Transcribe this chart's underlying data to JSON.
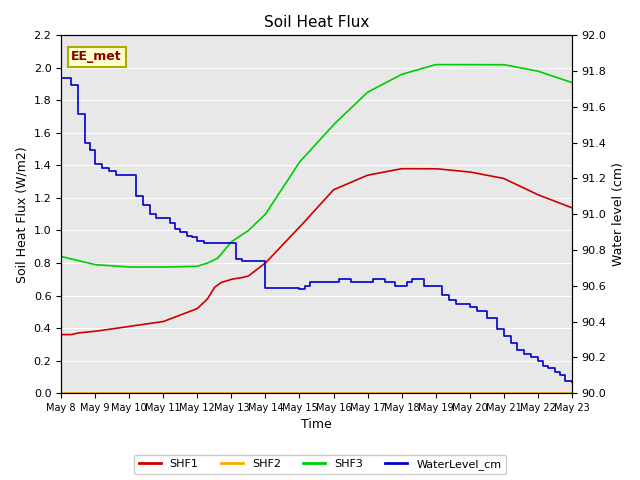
{
  "title": "Soil Heat Flux",
  "ylabel_left": "Soil Heat Flux (W/m2)",
  "ylabel_right": "Water level (cm)",
  "xlabel": "Time",
  "annotation": "EE_met",
  "ylim_left": [
    0.0,
    2.2
  ],
  "ylim_right": [
    90.0,
    92.0
  ],
  "fig_facecolor": "#ffffff",
  "plot_facecolor": "#e8e8e8",
  "shf1_color": "#cc0000",
  "shf2_color": "#ffaa00",
  "shf3_color": "#00cc00",
  "water_color": "#0000cc",
  "x_ticks": [
    "May 8",
    "May 9",
    "May 10",
    "May 11",
    "May 12",
    "May 13",
    "May 14",
    "May 15",
    "May 16",
    "May 17",
    "May 18",
    "May 19",
    "May 20",
    "May 21",
    "May 22",
    "May 23"
  ],
  "shf1_xp": [
    0,
    0.3,
    0.5,
    1,
    2,
    3,
    4,
    4.3,
    4.5,
    4.7,
    5,
    5.3,
    5.5,
    6,
    7,
    8,
    9,
    10,
    11,
    12,
    13,
    14,
    15
  ],
  "shf1_yp": [
    0.36,
    0.36,
    0.37,
    0.38,
    0.41,
    0.44,
    0.52,
    0.58,
    0.65,
    0.68,
    0.7,
    0.71,
    0.72,
    0.8,
    1.02,
    1.25,
    1.34,
    1.38,
    1.38,
    1.36,
    1.32,
    1.22,
    1.14
  ],
  "shf3_xp": [
    0,
    1,
    2,
    3,
    4,
    4.3,
    4.6,
    5,
    5.5,
    6,
    7,
    8,
    9,
    10,
    11,
    12,
    13,
    14,
    15
  ],
  "shf3_yp": [
    0.84,
    0.79,
    0.775,
    0.775,
    0.78,
    0.8,
    0.83,
    0.93,
    1.0,
    1.1,
    1.42,
    1.65,
    1.85,
    1.96,
    2.02,
    2.02,
    2.02,
    1.98,
    1.91
  ],
  "water_x": [
    0,
    0.15,
    0.3,
    0.5,
    0.7,
    0.85,
    1.0,
    1.2,
    1.4,
    1.6,
    1.8,
    2.0,
    2.2,
    2.4,
    2.6,
    2.8,
    3.0,
    3.2,
    3.35,
    3.5,
    3.7,
    3.85,
    4.0,
    4.2,
    4.4,
    4.6,
    4.8,
    5.0,
    5.15,
    5.3,
    5.5,
    5.65,
    5.8,
    6.0,
    6.15,
    6.3,
    6.5,
    6.65,
    6.8,
    7.0,
    7.15,
    7.3,
    7.5,
    7.65,
    7.8,
    8.0,
    8.15,
    8.3,
    8.5,
    8.65,
    8.8,
    9.0,
    9.15,
    9.3,
    9.5,
    9.65,
    9.8,
    10.0,
    10.15,
    10.3,
    10.5,
    10.65,
    10.8,
    11.0,
    11.2,
    11.4,
    11.6,
    11.8,
    12.0,
    12.2,
    12.5,
    12.8,
    13.0,
    13.2,
    13.4,
    13.6,
    13.8,
    14.0,
    14.15,
    14.3,
    14.5,
    14.65,
    14.8,
    15.0
  ],
  "water_y": [
    91.76,
    91.76,
    91.72,
    91.56,
    91.4,
    91.36,
    91.28,
    91.26,
    91.24,
    91.22,
    91.22,
    91.22,
    91.1,
    91.05,
    91.0,
    90.98,
    90.98,
    90.95,
    90.92,
    90.9,
    90.88,
    90.87,
    90.85,
    90.84,
    90.84,
    90.84,
    90.84,
    90.84,
    90.75,
    90.74,
    90.74,
    90.74,
    90.74,
    90.59,
    90.59,
    90.59,
    90.59,
    90.59,
    90.59,
    90.58,
    90.6,
    90.62,
    90.62,
    90.62,
    90.62,
    90.62,
    90.64,
    90.64,
    90.62,
    90.62,
    90.62,
    90.62,
    90.64,
    90.64,
    90.62,
    90.62,
    90.6,
    90.6,
    90.62,
    90.64,
    90.64,
    90.6,
    90.6,
    90.6,
    90.55,
    90.52,
    90.5,
    90.5,
    90.48,
    90.46,
    90.42,
    90.36,
    90.32,
    90.28,
    90.24,
    90.22,
    90.2,
    90.18,
    90.15,
    90.14,
    90.12,
    90.1,
    90.07,
    90.06
  ],
  "yticks_left": [
    0.0,
    0.2,
    0.4,
    0.6,
    0.8,
    1.0,
    1.2,
    1.4,
    1.6,
    1.8,
    2.0,
    2.2
  ],
  "yticks_right": [
    90.0,
    90.2,
    90.4,
    90.6,
    90.8,
    91.0,
    91.2,
    91.4,
    91.6,
    91.8,
    92.0
  ]
}
